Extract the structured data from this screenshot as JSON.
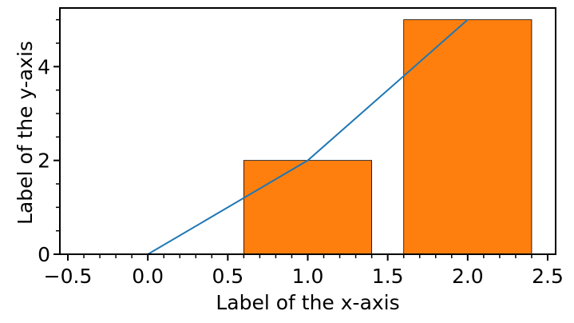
{
  "chart_data": {
    "type": "bar",
    "xlabel": "Label of the x-axis",
    "ylabel": "Label of the y-axis",
    "xlim": [
      -0.55,
      2.55
    ],
    "ylim": [
      0,
      5.25
    ],
    "grid": false,
    "x_ticks": [
      {
        "value": -0.5,
        "label": "−0.5"
      },
      {
        "value": 0.0,
        "label": "0.0"
      },
      {
        "value": 0.5,
        "label": "0.5"
      },
      {
        "value": 1.0,
        "label": "1.0"
      },
      {
        "value": 1.5,
        "label": "1.5"
      },
      {
        "value": 2.0,
        "label": "2.0"
      },
      {
        "value": 2.5,
        "label": "2.5"
      }
    ],
    "y_ticks": [
      {
        "value": 0,
        "label": "0"
      },
      {
        "value": 2,
        "label": "2"
      },
      {
        "value": 4,
        "label": "4"
      }
    ],
    "x_minor_step": 0.1,
    "y_minor_step": 0.5,
    "bars": {
      "x": [
        0,
        1,
        2
      ],
      "values": [
        0,
        2,
        5
      ],
      "width": 0.8,
      "color": "#ff7f0e",
      "edge_color": "#000000"
    },
    "line": {
      "x": [
        0,
        1,
        2
      ],
      "values": [
        0,
        2,
        5
      ],
      "color": "#1f77b4"
    }
  }
}
